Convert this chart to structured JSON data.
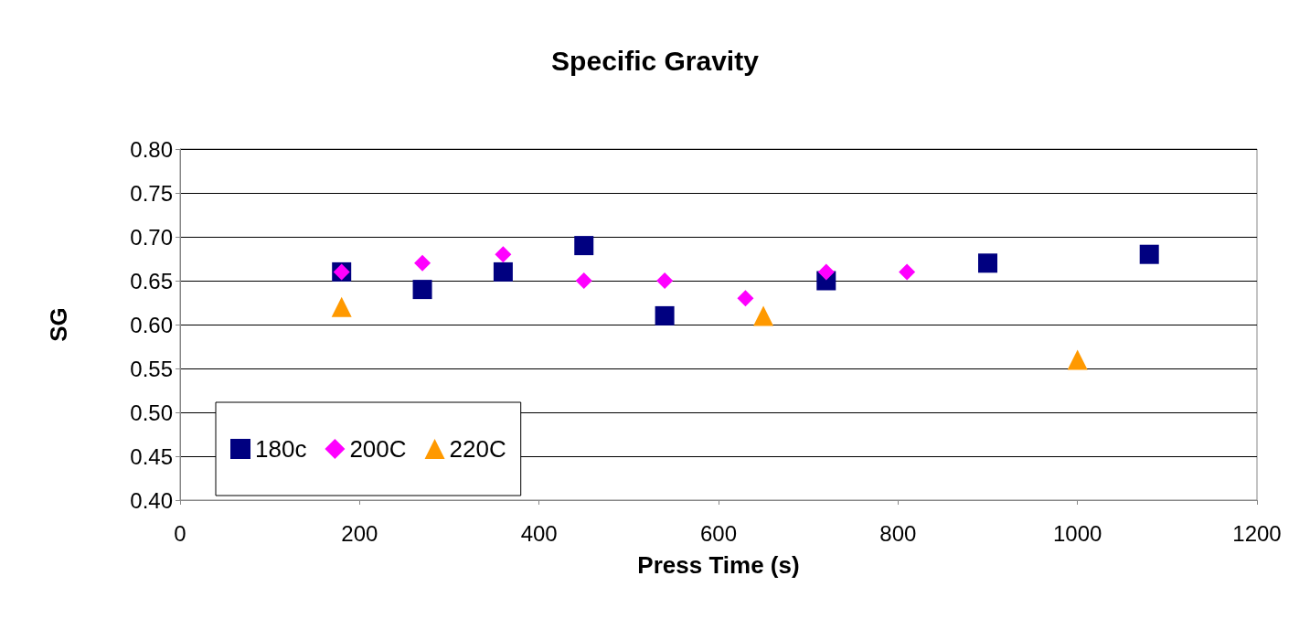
{
  "chart_data": {
    "type": "scatter",
    "title": "Specific Gravity",
    "xlabel": "Press Time (s)",
    "ylabel": "SG",
    "xlim": [
      0,
      1200
    ],
    "xticks": [
      0,
      200,
      400,
      600,
      800,
      1000,
      1200
    ],
    "ylim": [
      0.4,
      0.8
    ],
    "yticks": [
      {
        "value": 0.4,
        "label": "0.40"
      },
      {
        "value": 0.45,
        "label": "0.45"
      },
      {
        "value": 0.5,
        "label": "0.50"
      },
      {
        "value": 0.55,
        "label": "0.55"
      },
      {
        "value": 0.6,
        "label": "0.60"
      },
      {
        "value": 0.65,
        "label": "0.65"
      },
      {
        "value": 0.7,
        "label": "0.70"
      },
      {
        "value": 0.75,
        "label": "0.75"
      },
      {
        "value": 0.8,
        "label": "0.80"
      }
    ],
    "grid": "y",
    "legend": "bottom left",
    "series": [
      {
        "name": "180c",
        "color": "#000080",
        "marker": "square",
        "x": [
          180,
          270,
          360,
          450,
          540,
          720,
          900,
          1080
        ],
        "values": [
          0.66,
          0.64,
          0.66,
          0.69,
          0.61,
          0.65,
          0.67,
          0.68
        ]
      },
      {
        "name": "200C",
        "color": "#ff00ff",
        "marker": "diamond",
        "x": [
          180,
          270,
          360,
          450,
          540,
          630,
          720,
          810
        ],
        "values": [
          0.66,
          0.67,
          0.68,
          0.65,
          0.65,
          0.63,
          0.66,
          0.66
        ]
      },
      {
        "name": "220C",
        "color": "#ff9900",
        "marker": "triangle",
        "x": [
          180,
          650,
          1000
        ],
        "values": [
          0.62,
          0.61,
          0.56
        ]
      }
    ]
  }
}
